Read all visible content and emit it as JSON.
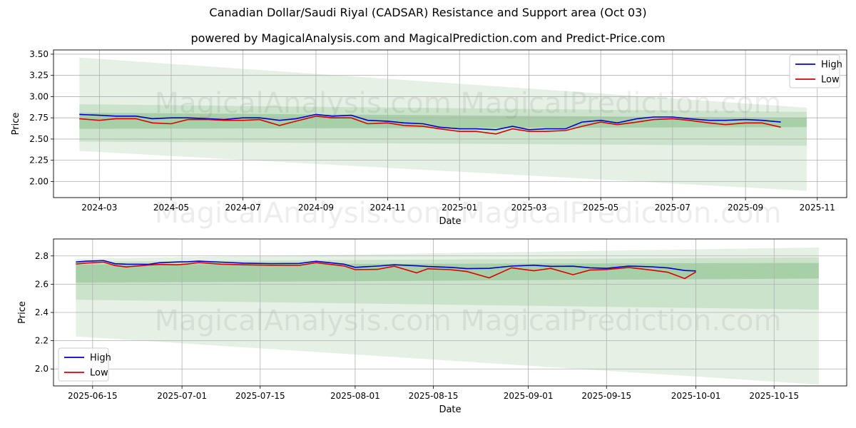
{
  "title": "Canadian Dollar/Saudi Riyal (CADSAR) Resistance and Support area (Oct 03)",
  "subtitle": "powered by MagicalAnalysis.com and MagicalPrediction.com and Predict-Price.com",
  "watermark": "MagicalAnalysis.com   MagicalPrediction.com",
  "colors": {
    "high": "#0000cc",
    "low": "#dd0000",
    "band": "#2e8b2e",
    "grid": "#b0b0b0"
  },
  "chart_data": [
    {
      "type": "line",
      "xlabel": "Date",
      "ylabel": "Price",
      "xlim": [
        "2024-01-22",
        "2025-11-26"
      ],
      "ylim": [
        1.81,
        3.55
      ],
      "grid": true,
      "legend": "top-right",
      "xticks": [
        "2024-03",
        "2024-05",
        "2024-07",
        "2024-09",
        "2024-11",
        "2025-01",
        "2025-03",
        "2025-05",
        "2025-07",
        "2025-09",
        "2025-11"
      ],
      "xtick_dates": [
        "2024-03-01",
        "2024-05-01",
        "2024-07-01",
        "2024-09-01",
        "2024-11-01",
        "2025-01-01",
        "2025-03-01",
        "2025-05-01",
        "2025-07-01",
        "2025-09-01",
        "2025-11-01"
      ],
      "yticks": [
        "2.00",
        "2.25",
        "2.50",
        "2.75",
        "3.00",
        "3.25",
        "3.50"
      ],
      "series": [
        {
          "name": "High",
          "x": [
            "2024-02-13",
            "2024-03-01",
            "2024-03-15",
            "2024-04-01",
            "2024-04-15",
            "2024-05-01",
            "2024-05-15",
            "2024-06-01",
            "2024-06-15",
            "2024-07-01",
            "2024-07-15",
            "2024-08-01",
            "2024-08-15",
            "2024-09-01",
            "2024-09-15",
            "2024-10-01",
            "2024-10-15",
            "2024-11-01",
            "2024-11-15",
            "2024-12-01",
            "2024-12-15",
            "2025-01-01",
            "2025-01-15",
            "2025-02-01",
            "2025-02-15",
            "2025-03-01",
            "2025-03-15",
            "2025-04-01",
            "2025-04-15",
            "2025-05-01",
            "2025-05-15",
            "2025-06-01",
            "2025-06-15",
            "2025-07-01",
            "2025-07-15",
            "2025-08-01",
            "2025-08-15",
            "2025-09-01",
            "2025-09-15",
            "2025-10-01"
          ],
          "y": [
            2.79,
            2.78,
            2.77,
            2.77,
            2.74,
            2.75,
            2.75,
            2.74,
            2.73,
            2.75,
            2.75,
            2.72,
            2.74,
            2.79,
            2.77,
            2.78,
            2.72,
            2.71,
            2.69,
            2.68,
            2.64,
            2.62,
            2.62,
            2.61,
            2.65,
            2.61,
            2.62,
            2.62,
            2.7,
            2.72,
            2.69,
            2.74,
            2.76,
            2.76,
            2.74,
            2.72,
            2.72,
            2.73,
            2.72,
            2.7
          ]
        },
        {
          "name": "Low",
          "x": [
            "2024-02-13",
            "2024-03-01",
            "2024-03-15",
            "2024-04-01",
            "2024-04-15",
            "2024-05-01",
            "2024-05-15",
            "2024-06-01",
            "2024-06-15",
            "2024-07-01",
            "2024-07-15",
            "2024-08-01",
            "2024-08-15",
            "2024-09-01",
            "2024-09-15",
            "2024-10-01",
            "2024-10-15",
            "2024-11-01",
            "2024-11-15",
            "2024-12-01",
            "2024-12-15",
            "2025-01-01",
            "2025-01-15",
            "2025-02-01",
            "2025-02-15",
            "2025-03-01",
            "2025-03-15",
            "2025-04-01",
            "2025-04-15",
            "2025-05-01",
            "2025-05-15",
            "2025-06-01",
            "2025-06-15",
            "2025-07-01",
            "2025-07-15",
            "2025-08-01",
            "2025-08-15",
            "2025-09-01",
            "2025-09-15",
            "2025-10-01"
          ],
          "y": [
            2.74,
            2.72,
            2.74,
            2.74,
            2.69,
            2.68,
            2.73,
            2.73,
            2.72,
            2.72,
            2.73,
            2.66,
            2.71,
            2.77,
            2.75,
            2.75,
            2.68,
            2.69,
            2.66,
            2.65,
            2.62,
            2.59,
            2.59,
            2.56,
            2.62,
            2.59,
            2.59,
            2.6,
            2.65,
            2.7,
            2.67,
            2.7,
            2.73,
            2.74,
            2.72,
            2.69,
            2.67,
            2.69,
            2.69,
            2.64
          ]
        }
      ],
      "bands": {
        "x_start": "2024-02-13",
        "x_end": "2025-10-23",
        "upper_start": [
          3.46,
          2.91,
          2.81
        ],
        "upper_end": [
          2.87,
          2.82,
          2.75
        ],
        "lower_start": [
          2.36,
          2.47,
          2.62
        ],
        "lower_end": [
          1.89,
          2.42,
          2.64
        ]
      }
    },
    {
      "type": "line",
      "xlabel": "Date",
      "ylabel": "Price",
      "xlim": [
        "2025-06-08",
        "2025-10-28"
      ],
      "ylim": [
        1.88,
        2.92
      ],
      "grid": true,
      "legend": "bottom-left",
      "xticks": [
        "2025-06-15",
        "2025-07-01",
        "2025-07-15",
        "2025-08-01",
        "2025-08-15",
        "2025-09-01",
        "2025-09-15",
        "2025-10-01",
        "2025-10-15"
      ],
      "yticks": [
        "2.0",
        "2.2",
        "2.4",
        "2.6",
        "2.8"
      ],
      "series": [
        {
          "name": "High",
          "x": [
            "2025-06-12",
            "2025-06-14",
            "2025-06-17",
            "2025-06-19",
            "2025-06-21",
            "2025-06-25",
            "2025-06-27",
            "2025-06-30",
            "2025-07-02",
            "2025-07-04",
            "2025-07-08",
            "2025-07-12",
            "2025-07-17",
            "2025-07-22",
            "2025-07-25",
            "2025-07-30",
            "2025-08-01",
            "2025-08-05",
            "2025-08-08",
            "2025-08-12",
            "2025-08-14",
            "2025-08-18",
            "2025-08-21",
            "2025-08-25",
            "2025-08-29",
            "2025-09-02",
            "2025-09-05",
            "2025-09-09",
            "2025-09-12",
            "2025-09-15",
            "2025-09-19",
            "2025-09-23",
            "2025-09-26",
            "2025-09-29",
            "2025-10-01"
          ],
          "y": [
            2.757,
            2.763,
            2.767,
            2.745,
            2.742,
            2.741,
            2.752,
            2.757,
            2.759,
            2.763,
            2.756,
            2.749,
            2.746,
            2.747,
            2.762,
            2.742,
            2.719,
            2.728,
            2.737,
            2.73,
            2.725,
            2.719,
            2.71,
            2.712,
            2.728,
            2.734,
            2.726,
            2.727,
            2.716,
            2.712,
            2.728,
            2.723,
            2.715,
            2.697,
            2.694
          ]
        },
        {
          "name": "Low",
          "x": [
            "2025-06-12",
            "2025-06-14",
            "2025-06-17",
            "2025-06-19",
            "2025-06-21",
            "2025-06-25",
            "2025-06-27",
            "2025-06-30",
            "2025-07-02",
            "2025-07-04",
            "2025-07-08",
            "2025-07-12",
            "2025-07-17",
            "2025-07-22",
            "2025-07-25",
            "2025-07-30",
            "2025-08-01",
            "2025-08-05",
            "2025-08-08",
            "2025-08-12",
            "2025-08-14",
            "2025-08-18",
            "2025-08-21",
            "2025-08-25",
            "2025-08-29",
            "2025-09-02",
            "2025-09-05",
            "2025-09-09",
            "2025-09-12",
            "2025-09-15",
            "2025-09-19",
            "2025-09-23",
            "2025-09-26",
            "2025-09-29",
            "2025-10-01"
          ],
          "y": [
            2.743,
            2.75,
            2.756,
            2.732,
            2.722,
            2.735,
            2.74,
            2.737,
            2.743,
            2.753,
            2.742,
            2.737,
            2.734,
            2.733,
            2.752,
            2.729,
            2.703,
            2.705,
            2.727,
            2.68,
            2.709,
            2.703,
            2.69,
            2.645,
            2.716,
            2.695,
            2.712,
            2.667,
            2.7,
            2.704,
            2.718,
            2.7,
            2.684,
            2.64,
            2.687
          ]
        }
      ],
      "bands": {
        "x_start": "2025-06-12",
        "x_end": "2025-10-23",
        "upper_start": [
          2.78,
          2.76,
          2.74
        ],
        "upper_end": [
          2.86,
          2.79,
          2.75
        ],
        "lower_start": [
          2.23,
          2.49,
          2.61
        ],
        "lower_end": [
          1.89,
          2.42,
          2.64
        ]
      }
    }
  ]
}
